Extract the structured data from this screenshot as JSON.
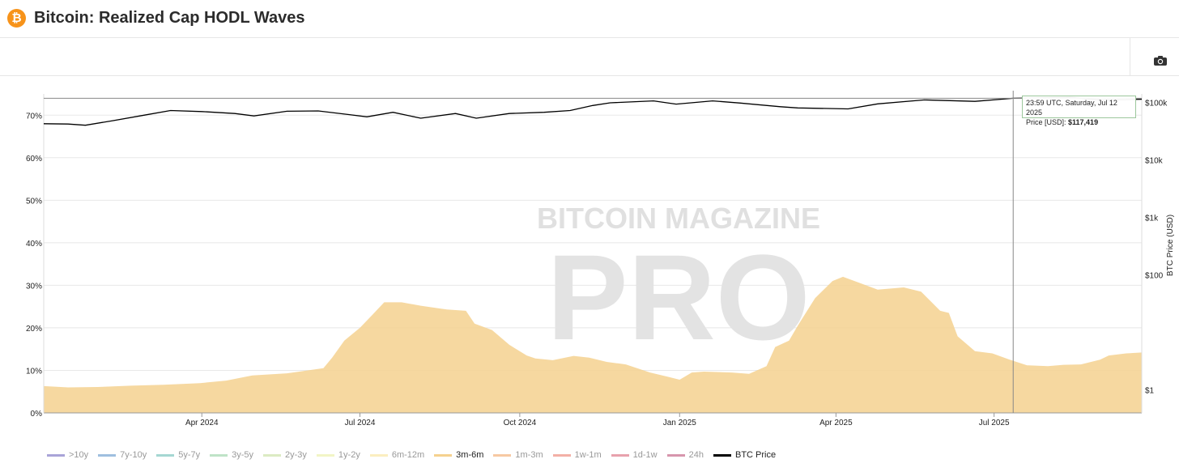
{
  "header": {
    "logo_symbol": "₿",
    "title": "Bitcoin: Realized Cap HODL Waves"
  },
  "toolbar": {
    "camera_icon": "camera-icon"
  },
  "chart_data": {
    "type": "area",
    "title": "Bitcoin: Realized Cap HODL Waves",
    "x_ticks": [
      "Apr 2024",
      "Jul 2024",
      "Oct 2024",
      "Jan 2025",
      "Apr 2025",
      "Jul 2025"
    ],
    "y_left_ticks": [
      "0%",
      "10%",
      "20%",
      "30%",
      "40%",
      "50%",
      "60%",
      "70%"
    ],
    "y_left_range": [
      0,
      75
    ],
    "y_right_label": "BTC Price (USD)",
    "y_right_ticks": [
      "$1",
      "$100",
      "$1k",
      "$10k",
      "$100k"
    ],
    "y_right_scale": "log",
    "grid": true,
    "watermark": "BITCOIN MAGAZINE PRO",
    "series": [
      {
        "name": "3m-6m",
        "color": "#f5d18f",
        "points": [
          [
            "2024-01-01",
            6.3
          ],
          [
            "2024-01-15",
            6.0
          ],
          [
            "2024-02-01",
            6.1
          ],
          [
            "2024-02-20",
            6.4
          ],
          [
            "2024-03-10",
            6.6
          ],
          [
            "2024-03-31",
            7.0
          ],
          [
            "2024-04-15",
            7.6
          ],
          [
            "2024-04-30",
            8.8
          ],
          [
            "2024-05-20",
            9.3
          ],
          [
            "2024-06-01",
            10.0
          ],
          [
            "2024-06-10",
            10.5
          ],
          [
            "2024-06-15",
            13.0
          ],
          [
            "2024-06-22",
            17.0
          ],
          [
            "2024-07-01",
            20.0
          ],
          [
            "2024-07-08",
            23.0
          ],
          [
            "2024-07-15",
            26.0
          ],
          [
            "2024-07-25",
            26.0
          ],
          [
            "2024-08-05",
            25.2
          ],
          [
            "2024-08-20",
            24.3
          ],
          [
            "2024-08-31",
            24.0
          ],
          [
            "2024-09-05",
            21.0
          ],
          [
            "2024-09-15",
            19.5
          ],
          [
            "2024-09-25",
            16.0
          ],
          [
            "2024-10-05",
            13.5
          ],
          [
            "2024-10-10",
            12.8
          ],
          [
            "2024-10-20",
            12.4
          ],
          [
            "2024-11-01",
            13.4
          ],
          [
            "2024-11-10",
            13.0
          ],
          [
            "2024-11-20",
            12.0
          ],
          [
            "2024-12-01",
            11.4
          ],
          [
            "2024-12-15",
            9.5
          ],
          [
            "2024-12-25",
            8.5
          ],
          [
            "2025-01-01",
            7.8
          ],
          [
            "2025-01-08",
            9.5
          ],
          [
            "2025-01-15",
            9.7
          ],
          [
            "2025-01-31",
            9.5
          ],
          [
            "2025-02-10",
            9.2
          ],
          [
            "2025-02-20",
            11.0
          ],
          [
            "2025-02-25",
            15.5
          ],
          [
            "2025-03-05",
            17.0
          ],
          [
            "2025-03-10",
            20.5
          ],
          [
            "2025-03-20",
            27.0
          ],
          [
            "2025-03-30",
            31.0
          ],
          [
            "2025-04-05",
            32.0
          ],
          [
            "2025-04-15",
            30.5
          ],
          [
            "2025-04-25",
            29.0
          ],
          [
            "2025-05-10",
            29.5
          ],
          [
            "2025-05-20",
            28.5
          ],
          [
            "2025-05-31",
            24.0
          ],
          [
            "2025-06-05",
            23.5
          ],
          [
            "2025-06-10",
            18.0
          ],
          [
            "2025-06-20",
            14.5
          ],
          [
            "2025-06-30",
            14.0
          ],
          [
            "2025-07-10",
            12.5
          ],
          [
            "2025-07-20",
            11.2
          ],
          [
            "2025-08-01",
            11.0
          ],
          [
            "2025-08-10",
            11.3
          ],
          [
            "2025-08-20",
            11.4
          ],
          [
            "2025-08-31",
            12.5
          ],
          [
            "2025-09-05",
            13.5
          ],
          [
            "2025-09-15",
            14.0
          ],
          [
            "2025-09-24",
            14.2
          ]
        ]
      },
      {
        "name": "BTC Price",
        "color": "#000000",
        "points": [
          [
            "2024-01-01",
            42500
          ],
          [
            "2024-01-15",
            42000
          ],
          [
            "2024-01-25",
            40000
          ],
          [
            "2024-02-10",
            48000
          ],
          [
            "2024-02-28",
            60000
          ],
          [
            "2024-03-14",
            72000
          ],
          [
            "2024-04-01",
            69000
          ],
          [
            "2024-04-20",
            64000
          ],
          [
            "2024-05-01",
            58000
          ],
          [
            "2024-05-20",
            70000
          ],
          [
            "2024-06-07",
            71000
          ],
          [
            "2024-06-25",
            61000
          ],
          [
            "2024-07-05",
            56000
          ],
          [
            "2024-07-20",
            67000
          ],
          [
            "2024-08-05",
            53000
          ],
          [
            "2024-08-25",
            64000
          ],
          [
            "2024-09-06",
            53000
          ],
          [
            "2024-09-25",
            64000
          ],
          [
            "2024-10-15",
            67000
          ],
          [
            "2024-10-30",
            72000
          ],
          [
            "2024-11-12",
            88000
          ],
          [
            "2024-11-22",
            98000
          ],
          [
            "2024-12-17",
            106000
          ],
          [
            "2024-12-30",
            93000
          ],
          [
            "2025-01-20",
            106000
          ],
          [
            "2025-02-05",
            97000
          ],
          [
            "2025-02-28",
            84000
          ],
          [
            "2025-03-10",
            80000
          ],
          [
            "2025-04-08",
            77000
          ],
          [
            "2025-04-25",
            94000
          ],
          [
            "2025-05-22",
            110000
          ],
          [
            "2025-06-20",
            104000
          ],
          [
            "2025-07-12",
            117419
          ],
          [
            "2025-08-14",
            122000
          ],
          [
            "2025-09-01",
            109000
          ],
          [
            "2025-09-24",
            113000
          ]
        ]
      }
    ],
    "x_range": [
      "2024-01-01",
      "2025-09-24"
    ],
    "y_right_range_log": [
      0.4,
      140000
    ],
    "legend": [
      {
        "name": ">10y",
        "color": "#a9a4d8"
      },
      {
        "name": "7y-10y",
        "color": "#9fbfdf"
      },
      {
        "name": "5y-7y",
        "color": "#a5d7d2"
      },
      {
        "name": "3y-5y",
        "color": "#bfe3c7"
      },
      {
        "name": "2y-3y",
        "color": "#dcebc3"
      },
      {
        "name": "1y-2y",
        "color": "#f2f5c6"
      },
      {
        "name": "6m-12m",
        "color": "#fbeec0"
      },
      {
        "name": "3m-6m",
        "color": "#f5d18f",
        "active": true
      },
      {
        "name": "1m-3m",
        "color": "#f7c9a3"
      },
      {
        "name": "1w-1m",
        "color": "#f3b0a6"
      },
      {
        "name": "1d-1w",
        "color": "#e8a2ad"
      },
      {
        "name": "24h",
        "color": "#d796ad"
      },
      {
        "name": "BTC Price",
        "color": "#000000",
        "active": true
      }
    ],
    "tooltip": {
      "line1": "23:59 UTC, Saturday, Jul 12 2025",
      "label": "Price [USD]:",
      "value": "$117,419",
      "date": "2025-07-12"
    }
  }
}
